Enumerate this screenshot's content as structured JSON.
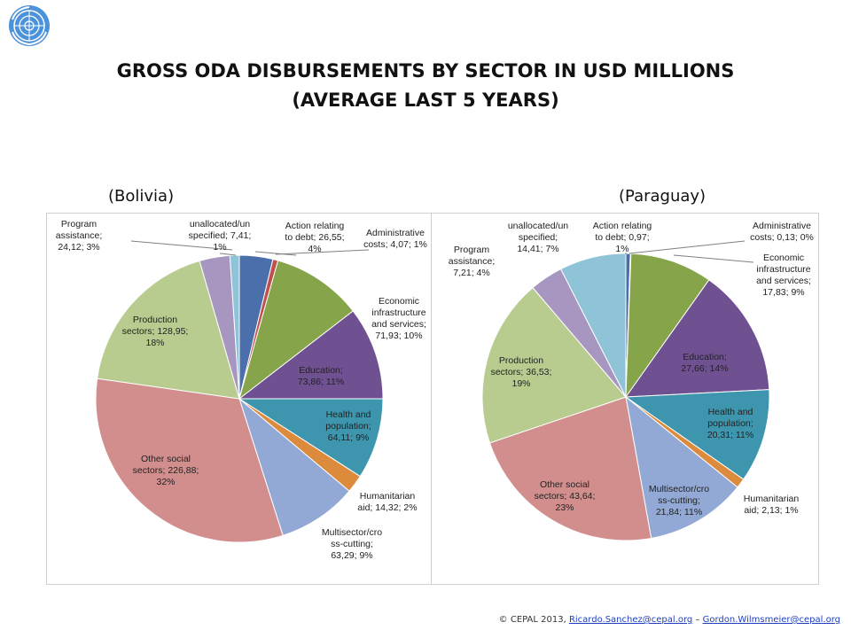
{
  "title_line1": "GROSS ODA DISBURSEMENTS BY SECTOR IN USD MILLIONS",
  "title_line2": "(AVERAGE LAST 5 YEARS)",
  "footer": {
    "copyright": "© CEPAL 2013,",
    "email1": "Ricardo.Sanchez@cepal.org",
    "separator": "–",
    "email2": "Gordon.Wilmsmeier@cepal.org"
  },
  "colors": {
    "action_debt": "#4a6fab",
    "admin": "#c0504d",
    "econ": "#86a44a",
    "education": "#6f5091",
    "health": "#3d96ae",
    "humanitarian": "#dc8a3c",
    "multisector": "#93a9d5",
    "other_social": "#d28e8d",
    "production": "#b7cc8e",
    "program": "#a796c0",
    "unallocated": "#8ec3d8"
  },
  "chart_data": [
    {
      "type": "pie",
      "title": "(Bolivia)",
      "slices": [
        {
          "key": "action_debt",
          "value": 26.55,
          "label": [
            "Action relating",
            "to debt; 26,55;",
            "4%"
          ]
        },
        {
          "key": "admin",
          "value": 4.07,
          "label": [
            "Administrative",
            "costs; 4,07; 1%"
          ]
        },
        {
          "key": "econ",
          "value": 71.93,
          "label": [
            "Economic",
            "infrastructure",
            "and services;",
            "71,93; 10%"
          ]
        },
        {
          "key": "education",
          "value": 73.86,
          "label": [
            "Education;",
            "73,86; 11%"
          ]
        },
        {
          "key": "health",
          "value": 64.11,
          "label": [
            "Health and",
            "population;",
            "64,11; 9%"
          ]
        },
        {
          "key": "humanitarian",
          "value": 14.32,
          "label": [
            "Humanitarian",
            "aid; 14,32; 2%"
          ]
        },
        {
          "key": "multisector",
          "value": 63.29,
          "label": [
            "Multisector/cro",
            "ss-cutting;",
            "63,29; 9%"
          ]
        },
        {
          "key": "other_social",
          "value": 226.88,
          "label": [
            "Other social",
            "sectors; 226,88;",
            "32%"
          ]
        },
        {
          "key": "production",
          "value": 128.95,
          "label": [
            "Production",
            "sectors; 128,95;",
            "18%"
          ]
        },
        {
          "key": "program",
          "value": 24.12,
          "label": [
            "Program",
            "assistance;",
            "24,12; 3%"
          ]
        },
        {
          "key": "unallocated",
          "value": 7.41,
          "label": [
            "unallocated/un",
            "specified; 7,41;",
            "1%"
          ]
        }
      ]
    },
    {
      "type": "pie",
      "title": "(Paraguay)",
      "slices": [
        {
          "key": "action_debt",
          "value": 0.97,
          "label": [
            "Action relating",
            "to debt; 0,97;",
            "1%"
          ]
        },
        {
          "key": "admin",
          "value": 0.13,
          "label": [
            "Administrative",
            "costs; 0,13; 0%"
          ]
        },
        {
          "key": "econ",
          "value": 17.83,
          "label": [
            "Economic",
            "infrastructure",
            "and services;",
            "17,83; 9%"
          ]
        },
        {
          "key": "education",
          "value": 27.66,
          "label": [
            "Education;",
            "27,66; 14%"
          ]
        },
        {
          "key": "health",
          "value": 20.31,
          "label": [
            "Health and",
            "population;",
            "20,31; 11%"
          ]
        },
        {
          "key": "humanitarian",
          "value": 2.13,
          "label": [
            "Humanitarian",
            "aid; 2,13; 1%"
          ]
        },
        {
          "key": "multisector",
          "value": 21.84,
          "label": [
            "Multisector/cro",
            "ss-cutting;",
            "21,84; 11%"
          ]
        },
        {
          "key": "other_social",
          "value": 43.64,
          "label": [
            "Other social",
            "sectors; 43,64;",
            "23%"
          ]
        },
        {
          "key": "production",
          "value": 36.53,
          "label": [
            "Production",
            "sectors; 36,53;",
            "19%"
          ]
        },
        {
          "key": "program",
          "value": 7.21,
          "label": [
            "Program",
            "assistance;",
            "7,21; 4%"
          ]
        },
        {
          "key": "unallocated",
          "value": 14.41,
          "label": [
            "unallocated/un",
            "specified;",
            "14,41; 7%"
          ]
        }
      ]
    }
  ]
}
